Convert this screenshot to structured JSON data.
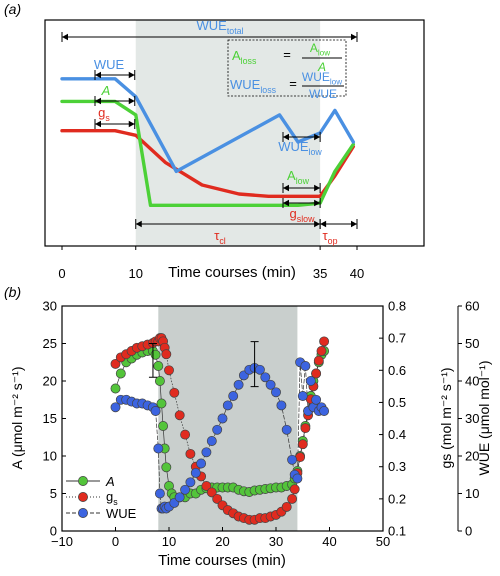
{
  "chart_data": [
    {
      "type": "line",
      "panel_label": "(a)",
      "xlabel": "Time courses (min)",
      "xticks": [
        "0",
        "10",
        "35",
        "40"
      ],
      "x_tick_values": [
        0,
        10,
        35,
        40
      ],
      "shaded_region": [
        10,
        35
      ],
      "colors": {
        "WUE": "#4a90e2",
        "A": "#4cd137",
        "gs": "#e02b1f",
        "shade": "#e3e8e6"
      },
      "series": [
        {
          "name": "WUE",
          "x": [
            0,
            7.2,
            10,
            15.5,
            29.5,
            32,
            35,
            37,
            39.5
          ],
          "y": [
            0.74,
            0.74,
            0.66,
            0.33,
            0.58,
            0.46,
            0.5,
            0.6,
            0.46
          ]
        },
        {
          "name": "A",
          "x": [
            0,
            7.2,
            10,
            12,
            20,
            32,
            35,
            37,
            39.5
          ],
          "y": [
            0.64,
            0.64,
            0.58,
            0.18,
            0.18,
            0.18,
            0.19,
            0.33,
            0.45
          ]
        },
        {
          "name": "gs",
          "x": [
            0,
            7.2,
            10,
            14,
            19,
            24,
            28,
            32,
            35,
            37,
            39.5
          ],
          "y": [
            0.51,
            0.51,
            0.49,
            0.37,
            0.27,
            0.23,
            0.22,
            0.22,
            0.22,
            0.31,
            0.44
          ]
        }
      ],
      "annotations": {
        "wue_total": "WUE",
        "wue_total_sub": "total",
        "wue": "WUE",
        "a": "A",
        "gs": "g",
        "gs_sub": "s",
        "wue_low": "WUE",
        "wue_low_sub": "low",
        "a_low": "A",
        "a_low_sub": "low",
        "gs_low": "g",
        "gs_low_sub": "slow",
        "tau_cl": "τ",
        "tau_cl_sub": "cl",
        "tau_op": "τ",
        "tau_op_sub": "op",
        "eq1_lhs": "A",
        "eq1_lhs_sub": "loss",
        "eq1_eq": "=",
        "eq1_num": "A",
        "eq1_num_sub": "low",
        "eq1_den": "A",
        "eq2_lhs": "WUE",
        "eq2_lhs_sub": "loss",
        "eq2_eq": "=",
        "eq2_num": "WUE",
        "eq2_num_sub": "low",
        "eq2_den": "WUE"
      }
    },
    {
      "type": "scatter",
      "panel_label": "(b)",
      "xlabel": "Time courses (min)",
      "xlim": [
        -10,
        50
      ],
      "xticks": [
        "−10",
        "0",
        "10",
        "20",
        "30",
        "40",
        "50"
      ],
      "x_tick_values": [
        -10,
        0,
        10,
        20,
        30,
        40,
        50
      ],
      "shaded_region": [
        8,
        34
      ],
      "ylabel_left": "A (μmol m⁻² s⁻¹)",
      "ylim_left": [
        0,
        30
      ],
      "yticks_left": [
        "0",
        "5",
        "10",
        "15",
        "20",
        "25",
        "30"
      ],
      "y_tick_values_left": [
        0,
        5,
        10,
        15,
        20,
        25,
        30
      ],
      "ylabel_right_gs": "gs (mol m⁻² s⁻¹)",
      "ylim_right_gs": [
        0.1,
        0.8
      ],
      "yticks_right_gs": [
        "0.1",
        "0.2",
        "0.3",
        "0.4",
        "0.5",
        "0.6",
        "0.7",
        "0.8"
      ],
      "y_tick_values_right_gs": [
        0.1,
        0.2,
        0.3,
        0.4,
        0.5,
        0.6,
        0.7,
        0.8
      ],
      "ylabel_right_wue": "WUE (μmol mol⁻¹)",
      "ylim_right_wue": [
        0,
        60
      ],
      "yticks_right_wue": [
        "0",
        "10",
        "20",
        "30",
        "40",
        "50",
        "60"
      ],
      "y_tick_values_right_wue": [
        0,
        10,
        20,
        30,
        40,
        50,
        60
      ],
      "legend": [
        {
          "name": "A",
          "color": "#53c43a",
          "line": "solid"
        },
        {
          "name": "gs",
          "color": "#e02b1f",
          "line": "dotted"
        },
        {
          "name": "WUE",
          "color": "#3c64e0",
          "line": "dashed"
        }
      ],
      "series": [
        {
          "name": "A",
          "axis": "left",
          "color": "#53c43a",
          "x": [
            0,
            1,
            2,
            3,
            4,
            5,
            6,
            7,
            7.5,
            8,
            8.3,
            8.6,
            8.9,
            9.2,
            9.5,
            10,
            10.5,
            11,
            12,
            13,
            14,
            15,
            16,
            17,
            18,
            19,
            20,
            21,
            22,
            23,
            24,
            25,
            26,
            27,
            28,
            29,
            30,
            31,
            32,
            33,
            33.5,
            34,
            34.5,
            35,
            35.5,
            36,
            36.5,
            37,
            37.5,
            38,
            38.5,
            39
          ],
          "y": [
            19,
            21,
            22.5,
            23,
            23.5,
            23.8,
            24,
            24,
            23.5,
            22,
            20,
            17,
            14,
            11,
            8.5,
            6,
            5,
            4.5,
            4.5,
            4.5,
            5,
            5,
            5.5,
            5.7,
            5.8,
            5.8,
            5.8,
            5.8,
            5.8,
            5.5,
            5.3,
            5.2,
            5.4,
            5.5,
            5.6,
            5.7,
            5.8,
            5.8,
            6,
            6.2,
            7,
            8,
            10,
            12,
            14,
            16,
            18,
            20,
            21,
            22.5,
            23.5,
            24
          ]
        },
        {
          "name": "gs",
          "axis": "right_gs",
          "color": "#e02b1f",
          "x": [
            0,
            1,
            2,
            3,
            4,
            5,
            6,
            7,
            7.5,
            8,
            8.3,
            8.6,
            8.9,
            9.2,
            9.5,
            10,
            11,
            12,
            13,
            14,
            15,
            16,
            17,
            18,
            19,
            20,
            21,
            22,
            23,
            24,
            25,
            26,
            27,
            28,
            29,
            30,
            31,
            32,
            33,
            33.5,
            34,
            34.5,
            35,
            35.5,
            36,
            36.5,
            37,
            37.5,
            38,
            38.5,
            39
          ],
          "y": [
            0.62,
            0.64,
            0.65,
            0.66,
            0.67,
            0.675,
            0.68,
            0.685,
            0.69,
            0.69,
            0.7,
            0.7,
            0.69,
            0.67,
            0.65,
            0.6,
            0.53,
            0.46,
            0.4,
            0.34,
            0.3,
            0.27,
            0.24,
            0.22,
            0.2,
            0.18,
            0.165,
            0.155,
            0.145,
            0.14,
            0.135,
            0.135,
            0.14,
            0.14,
            0.145,
            0.15,
            0.16,
            0.175,
            0.2,
            0.23,
            0.28,
            0.33,
            0.37,
            0.42,
            0.46,
            0.51,
            0.55,
            0.59,
            0.63,
            0.66,
            0.69
          ]
        },
        {
          "name": "WUE",
          "axis": "right_wue",
          "color": "#3c64e0",
          "x": [
            0,
            1,
            2,
            3,
            4,
            5,
            6,
            7,
            7.5,
            8,
            8.3,
            8.6,
            8.9,
            9.2,
            9.5,
            10,
            11,
            12,
            13,
            14,
            15,
            16,
            17,
            18,
            19,
            20,
            21,
            22,
            23,
            24,
            25,
            26,
            27,
            28,
            29,
            30,
            31,
            32,
            33,
            33.5,
            34,
            34.5,
            35,
            35.5,
            36,
            36.5,
            37,
            37.5,
            38,
            38.5,
            39
          ],
          "y": [
            33,
            35,
            35,
            34.5,
            34,
            34,
            33.5,
            33,
            32,
            22,
            10,
            6,
            6,
            6.5,
            6,
            6.5,
            7.5,
            9,
            11,
            13,
            15.5,
            18,
            21,
            24,
            27,
            30,
            33.5,
            36,
            39,
            41.5,
            43,
            43.5,
            43,
            41,
            39,
            37,
            33.5,
            27,
            19,
            15,
            14,
            45,
            36,
            44,
            32,
            40,
            33,
            35,
            32,
            33,
            32
          ]
        }
      ],
      "error_bars": [
        {
          "axis": "left",
          "x": 7,
          "y": 22.5,
          "low": 20.5,
          "high": 25
        },
        {
          "axis": "right_wue",
          "x": 26,
          "y": 43.5,
          "low": 38.5,
          "high": 50.5
        }
      ]
    }
  ]
}
